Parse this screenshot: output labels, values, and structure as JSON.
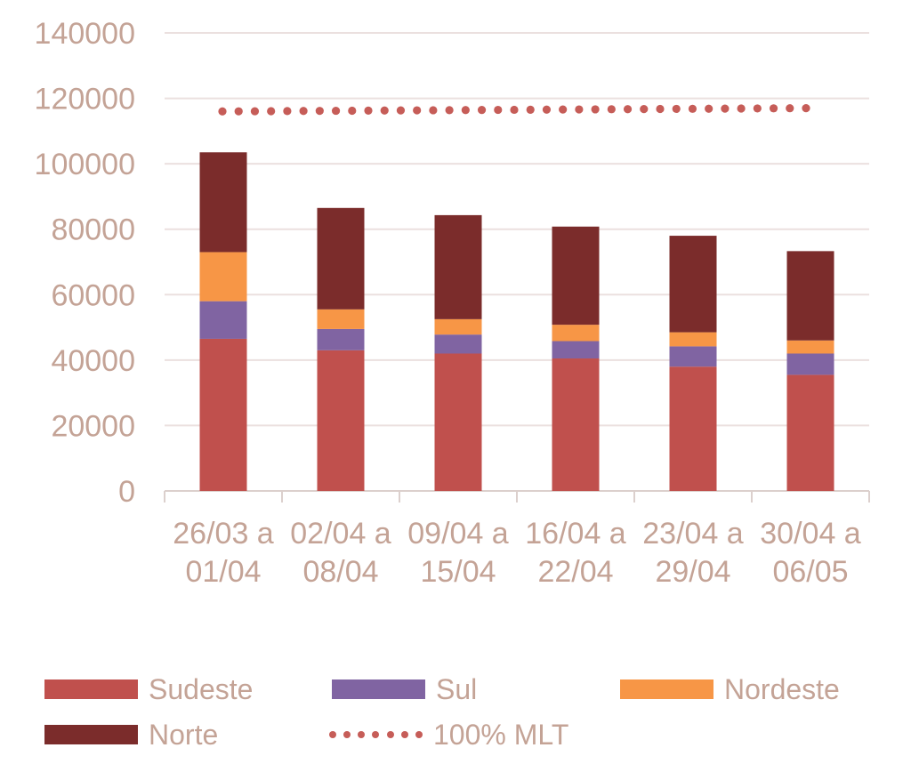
{
  "chart_data": {
    "type": "bar",
    "stacked": true,
    "categories": [
      [
        "26/03 a",
        "01/04"
      ],
      [
        "02/04 a",
        "08/04"
      ],
      [
        "09/04 a",
        "15/04"
      ],
      [
        "16/04 a",
        "22/04"
      ],
      [
        "23/04 a",
        "29/04"
      ],
      [
        "30/04 a",
        "06/05"
      ]
    ],
    "series": [
      {
        "name": "Sudeste",
        "color": "#c0504d",
        "values": [
          46500,
          43000,
          42000,
          40500,
          38000,
          35500
        ]
      },
      {
        "name": "Sul",
        "color": "#8064a2",
        "values": [
          11500,
          6500,
          5800,
          5300,
          6200,
          6500
        ]
      },
      {
        "name": "Nordeste",
        "color": "#f79646",
        "values": [
          15000,
          6000,
          4700,
          5000,
          4300,
          4000
        ]
      },
      {
        "name": "Norte",
        "color": "#7b2c2b",
        "values": [
          30500,
          31000,
          31800,
          30000,
          29500,
          27300
        ]
      }
    ],
    "line": {
      "name": "100% MLT",
      "color": "#c65d58",
      "style": "dotted",
      "start": 116000,
      "end": 117000
    },
    "ylim": [
      0,
      140000
    ],
    "yticks": [
      0,
      20000,
      40000,
      60000,
      80000,
      100000,
      120000,
      140000
    ],
    "grid": true,
    "legend_position": "bottom",
    "title": "",
    "xlabel": "",
    "ylabel": ""
  },
  "colors": {
    "axis_text": "#c4a396",
    "grid": "#ebe0df",
    "axis": "#dcd0cd"
  }
}
